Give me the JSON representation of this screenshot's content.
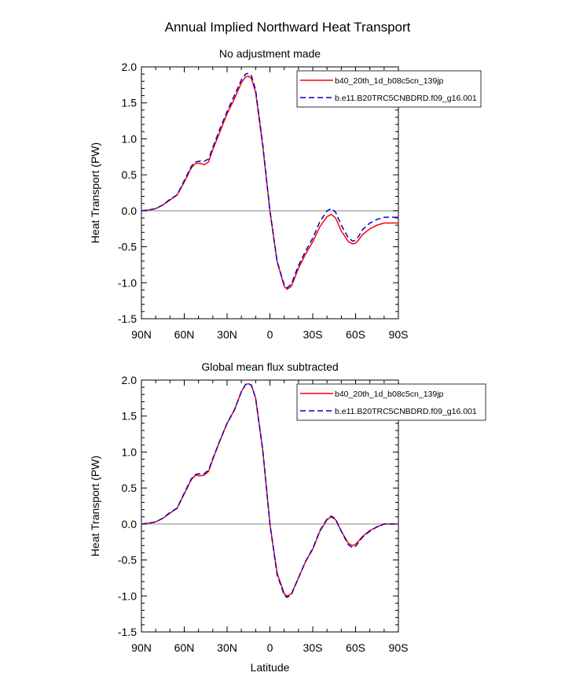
{
  "figure": {
    "title": "Annual Implied Northward Heat Transport"
  },
  "chart_data": [
    {
      "type": "line",
      "title": "No adjustment made",
      "xlabel": "",
      "ylabel": "Heat Transport (PW)",
      "xlim": [
        90,
        -90
      ],
      "ylim": [
        -1.5,
        2.0
      ],
      "xticks": [
        90,
        60,
        30,
        0,
        -30,
        -60,
        -90
      ],
      "xtick_labels": [
        "90N",
        "60N",
        "30N",
        "0",
        "30S",
        "60S",
        "90S"
      ],
      "yticks": [
        2.0,
        1.5,
        1.0,
        0.5,
        0.0,
        -0.5,
        -1.0,
        -1.5
      ],
      "ytick_labels": [
        "2.0",
        "1.5",
        "1.0",
        "0.5",
        "0.0",
        "-0.5",
        "-1.0",
        "-1.5"
      ],
      "legend_position": "top-right",
      "series": [
        {
          "name": "b40_20th_1d_b08c5cn_139jp",
          "color": "#ff0000",
          "dash": "solid",
          "x": [
            90,
            85,
            80,
            75,
            70,
            65,
            60,
            55,
            52,
            49,
            46,
            43,
            40,
            35,
            30,
            25,
            20,
            17,
            15,
            13,
            10,
            5,
            0,
            -5,
            -10,
            -12,
            -15,
            -20,
            -25,
            -30,
            -35,
            -40,
            -43,
            -46,
            -50,
            -55,
            -58,
            -60,
            -62,
            -65,
            -70,
            -75,
            -80,
            -85,
            -90
          ],
          "y": [
            0.0,
            0.01,
            0.03,
            0.08,
            0.15,
            0.22,
            0.4,
            0.6,
            0.66,
            0.66,
            0.64,
            0.68,
            0.85,
            1.1,
            1.35,
            1.55,
            1.78,
            1.86,
            1.87,
            1.84,
            1.65,
            0.9,
            0.0,
            -0.7,
            -1.05,
            -1.09,
            -1.05,
            -0.8,
            -0.6,
            -0.43,
            -0.22,
            -0.08,
            -0.05,
            -0.1,
            -0.28,
            -0.43,
            -0.46,
            -0.45,
            -0.41,
            -0.33,
            -0.25,
            -0.2,
            -0.17,
            -0.17,
            -0.17
          ]
        },
        {
          "name": "b.e11.B20TRC5CNBDRD.f09_g16.001",
          "color": "#0000cc",
          "dash": "dashed",
          "x": [
            90,
            85,
            80,
            75,
            70,
            65,
            60,
            55,
            52,
            49,
            46,
            43,
            40,
            35,
            30,
            25,
            20,
            17,
            15,
            13,
            10,
            5,
            0,
            -5,
            -10,
            -12,
            -15,
            -20,
            -25,
            -30,
            -35,
            -40,
            -43,
            -46,
            -50,
            -55,
            -58,
            -60,
            -62,
            -65,
            -70,
            -75,
            -80,
            -85,
            -90
          ],
          "y": [
            0.0,
            0.01,
            0.03,
            0.08,
            0.16,
            0.22,
            0.42,
            0.62,
            0.68,
            0.69,
            0.69,
            0.72,
            0.88,
            1.14,
            1.38,
            1.6,
            1.82,
            1.9,
            1.91,
            1.88,
            1.68,
            0.92,
            0.0,
            -0.7,
            -1.03,
            -1.07,
            -1.02,
            -0.76,
            -0.56,
            -0.38,
            -0.15,
            0.0,
            0.03,
            -0.02,
            -0.2,
            -0.38,
            -0.42,
            -0.41,
            -0.36,
            -0.26,
            -0.17,
            -0.12,
            -0.09,
            -0.09,
            -0.09
          ]
        }
      ]
    },
    {
      "type": "line",
      "title": "Global mean flux subtracted",
      "xlabel": "Latitude",
      "ylabel": "Heat Transport (PW)",
      "xlim": [
        90,
        -90
      ],
      "ylim": [
        -1.5,
        2.0
      ],
      "xticks": [
        90,
        60,
        30,
        0,
        -30,
        -60,
        -90
      ],
      "xtick_labels": [
        "90N",
        "60N",
        "30N",
        "0",
        "30S",
        "60S",
        "90S"
      ],
      "yticks": [
        2.0,
        1.5,
        1.0,
        0.5,
        0.0,
        -0.5,
        -1.0,
        -1.5
      ],
      "ytick_labels": [
        "2.0",
        "1.5",
        "1.0",
        "0.5",
        "0.0",
        "-0.5",
        "-1.0",
        "-1.5"
      ],
      "legend_position": "top-right",
      "series": [
        {
          "name": "b40_20th_1d_b08c5cn_139jp",
          "color": "#ff0000",
          "dash": "solid",
          "x": [
            90,
            85,
            80,
            75,
            70,
            65,
            60,
            55,
            52,
            49,
            46,
            43,
            40,
            35,
            30,
            25,
            20,
            17,
            15,
            13,
            10,
            5,
            0,
            -5,
            -10,
            -12,
            -15,
            -20,
            -25,
            -30,
            -35,
            -40,
            -43,
            -46,
            -50,
            -55,
            -58,
            -60,
            -62,
            -65,
            -70,
            -75,
            -80,
            -85,
            -90
          ],
          "y": [
            0.0,
            0.01,
            0.03,
            0.08,
            0.15,
            0.22,
            0.42,
            0.62,
            0.68,
            0.67,
            0.68,
            0.73,
            0.9,
            1.16,
            1.4,
            1.58,
            1.84,
            1.94,
            1.95,
            1.93,
            1.75,
            1.02,
            0.0,
            -0.68,
            -0.97,
            -1.0,
            -0.97,
            -0.75,
            -0.52,
            -0.35,
            -0.1,
            0.06,
            0.1,
            0.06,
            -0.1,
            -0.27,
            -0.3,
            -0.28,
            -0.24,
            -0.17,
            -0.09,
            -0.04,
            0.0,
            0.0,
            0.0
          ]
        },
        {
          "name": "b.e11.B20TRC5CNBDRD.f09_g16.001",
          "color": "#0000cc",
          "dash": "dashed",
          "x": [
            90,
            85,
            80,
            75,
            70,
            65,
            60,
            55,
            52,
            49,
            46,
            43,
            40,
            35,
            30,
            25,
            20,
            17,
            15,
            13,
            10,
            5,
            0,
            -5,
            -10,
            -12,
            -15,
            -20,
            -25,
            -30,
            -35,
            -40,
            -43,
            -46,
            -50,
            -55,
            -58,
            -60,
            -62,
            -65,
            -70,
            -75,
            -80,
            -85,
            -90
          ],
          "y": [
            0.0,
            0.01,
            0.03,
            0.08,
            0.16,
            0.22,
            0.43,
            0.63,
            0.69,
            0.7,
            0.7,
            0.75,
            0.91,
            1.16,
            1.4,
            1.58,
            1.84,
            1.94,
            1.95,
            1.93,
            1.75,
            1.03,
            0.0,
            -0.7,
            -0.99,
            -1.02,
            -0.98,
            -0.75,
            -0.52,
            -0.34,
            -0.09,
            0.07,
            0.11,
            0.07,
            -0.1,
            -0.29,
            -0.33,
            -0.31,
            -0.26,
            -0.18,
            -0.1,
            -0.04,
            0.0,
            0.0,
            0.0
          ]
        }
      ]
    }
  ]
}
